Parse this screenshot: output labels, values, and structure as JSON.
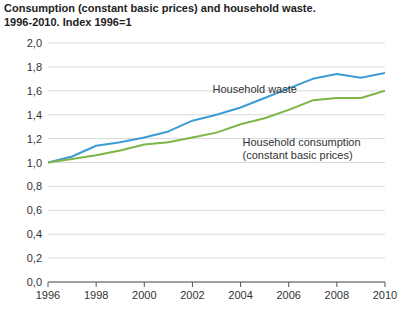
{
  "chart_data": {
    "type": "line",
    "title": "Consumption (constant basic prices) and household waste.",
    "subtitle": "1996-2010. Index 1996=1",
    "x": [
      1996,
      1997,
      1998,
      1999,
      2000,
      2001,
      2002,
      2003,
      2004,
      2005,
      2006,
      2007,
      2008,
      2009,
      2010
    ],
    "series": [
      {
        "name": "Household waste",
        "color": "#3d9bd6",
        "values": [
          1.0,
          1.05,
          1.14,
          1.17,
          1.21,
          1.26,
          1.35,
          1.4,
          1.46,
          1.54,
          1.62,
          1.7,
          1.74,
          1.71,
          1.75
        ]
      },
      {
        "name": "Household consumption (constant basic prices)",
        "color": "#7ab648",
        "values": [
          1.0,
          1.03,
          1.06,
          1.1,
          1.15,
          1.17,
          1.21,
          1.25,
          1.32,
          1.37,
          1.44,
          1.52,
          1.54,
          1.54,
          1.6
        ]
      }
    ],
    "xlim": [
      1996,
      2010
    ],
    "xticks": [
      1996,
      1998,
      2000,
      2002,
      2004,
      2006,
      2008,
      2010
    ],
    "ylim": [
      0,
      2
    ],
    "yticks": [
      {
        "value": 0,
        "label": "0,0"
      },
      {
        "value": 0.2,
        "label": "0,2"
      },
      {
        "value": 0.4,
        "label": "0,4"
      },
      {
        "value": 0.6,
        "label": "0,6"
      },
      {
        "value": 0.8,
        "label": "0,8"
      },
      {
        "value": 1,
        "label": "1,0"
      },
      {
        "value": 1.2,
        "label": "1,2"
      },
      {
        "value": 1.4,
        "label": "1,4"
      },
      {
        "value": 1.6,
        "label": "1,6"
      },
      {
        "value": 1.8,
        "label": "1,8"
      },
      {
        "value": 2,
        "label": "2,0"
      }
    ],
    "grid": true
  }
}
